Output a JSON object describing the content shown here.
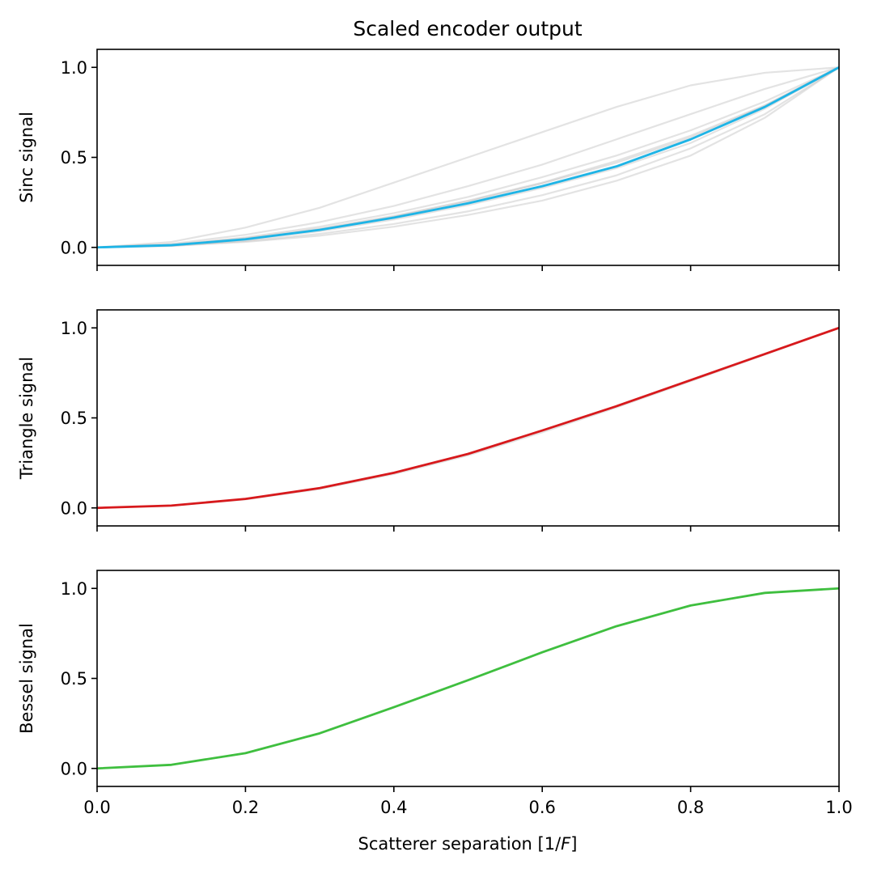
{
  "chart_data": {
    "type": "line",
    "title": "Scaled encoder output",
    "xlabel": "Scatterer separation [1/F]",
    "xlabel_parts": {
      "prefix": "Scatterer separation [1/",
      "italic": "F",
      "suffix": "]"
    },
    "xlim": [
      0.0,
      1.0
    ],
    "x_ticks": [
      0.0,
      0.2,
      0.4,
      0.6,
      0.8,
      1.0
    ],
    "x_tick_labels": [
      "0.0",
      "0.2",
      "0.4",
      "0.6",
      "0.8",
      "1.0"
    ],
    "sharex": true,
    "grid": false,
    "panels": [
      {
        "ylabel": "Sinc signal",
        "ylim": [
          -0.1,
          1.1
        ],
        "y_ticks": [
          0.0,
          0.5,
          1.0
        ],
        "y_tick_labels": [
          "0.0",
          "0.5",
          "1.0"
        ],
        "highlight": {
          "color": "#1eb4e6",
          "x": [
            0.0,
            0.1,
            0.2,
            0.3,
            0.4,
            0.5,
            0.6,
            0.7,
            0.8,
            0.9,
            1.0
          ],
          "y": [
            0.0,
            0.012,
            0.045,
            0.097,
            0.165,
            0.245,
            0.34,
            0.45,
            0.6,
            0.78,
            1.0
          ]
        },
        "background_color": "#999999",
        "background": [
          {
            "x": [
              0.0,
              0.1,
              0.2,
              0.3,
              0.4,
              0.5,
              0.6,
              0.7,
              0.8,
              0.9,
              1.0
            ],
            "y": [
              0.0,
              0.03,
              0.11,
              0.22,
              0.36,
              0.5,
              0.64,
              0.78,
              0.9,
              0.97,
              1.0
            ]
          },
          {
            "x": [
              0.0,
              0.1,
              0.2,
              0.3,
              0.4,
              0.5,
              0.6,
              0.7,
              0.8,
              0.9,
              1.0
            ],
            "y": [
              0.0,
              0.02,
              0.07,
              0.14,
              0.23,
              0.34,
              0.46,
              0.6,
              0.74,
              0.88,
              1.0
            ]
          },
          {
            "x": [
              0.0,
              0.1,
              0.2,
              0.3,
              0.4,
              0.5,
              0.6,
              0.7,
              0.8,
              0.9,
              1.0
            ],
            "y": [
              0.0,
              0.015,
              0.055,
              0.115,
              0.19,
              0.28,
              0.39,
              0.51,
              0.65,
              0.81,
              1.0
            ]
          },
          {
            "x": [
              0.0,
              0.1,
              0.2,
              0.3,
              0.4,
              0.5,
              0.6,
              0.7,
              0.8,
              0.9,
              1.0
            ],
            "y": [
              0.0,
              0.013,
              0.05,
              0.105,
              0.175,
              0.26,
              0.36,
              0.48,
              0.62,
              0.79,
              1.0
            ]
          },
          {
            "x": [
              0.0,
              0.1,
              0.2,
              0.3,
              0.4,
              0.5,
              0.6,
              0.7,
              0.8,
              0.9,
              1.0
            ],
            "y": [
              0.0,
              0.012,
              0.046,
              0.1,
              0.17,
              0.255,
              0.355,
              0.47,
              0.61,
              0.785,
              1.0
            ]
          },
          {
            "x": [
              0.0,
              0.1,
              0.2,
              0.3,
              0.4,
              0.5,
              0.6,
              0.7,
              0.8,
              0.9,
              1.0
            ],
            "y": [
              0.0,
              0.011,
              0.042,
              0.09,
              0.155,
              0.235,
              0.33,
              0.44,
              0.58,
              0.77,
              1.0
            ]
          },
          {
            "x": [
              0.0,
              0.1,
              0.2,
              0.3,
              0.4,
              0.5,
              0.6,
              0.7,
              0.8,
              0.9,
              1.0
            ],
            "y": [
              0.0,
              0.009,
              0.035,
              0.075,
              0.13,
              0.2,
              0.29,
              0.4,
              0.55,
              0.74,
              1.0
            ]
          },
          {
            "x": [
              0.0,
              0.1,
              0.2,
              0.3,
              0.4,
              0.5,
              0.6,
              0.7,
              0.8,
              0.9,
              1.0
            ],
            "y": [
              0.0,
              0.008,
              0.03,
              0.065,
              0.115,
              0.18,
              0.26,
              0.37,
              0.51,
              0.72,
              1.0
            ]
          }
        ]
      },
      {
        "ylabel": "Triangle signal",
        "ylim": [
          -0.1,
          1.1
        ],
        "y_ticks": [
          0.0,
          0.5,
          1.0
        ],
        "y_tick_labels": [
          "0.0",
          "0.5",
          "1.0"
        ],
        "highlight": {
          "color": "#d7191c",
          "x": [
            0.0,
            0.1,
            0.2,
            0.3,
            0.4,
            0.5,
            0.6,
            0.7,
            0.8,
            0.9,
            1.0
          ],
          "y": [
            0.0,
            0.013,
            0.05,
            0.11,
            0.195,
            0.3,
            0.43,
            0.565,
            0.71,
            0.855,
            1.0
          ]
        },
        "background_color": "#999999",
        "background": [
          {
            "x": [
              0.0,
              0.1,
              0.2,
              0.3,
              0.4,
              0.5,
              0.6,
              0.7,
              0.8,
              0.9,
              1.0
            ],
            "y": [
              0.0,
              0.012,
              0.047,
              0.105,
              0.188,
              0.292,
              0.42,
              0.558,
              0.704,
              0.852,
              1.0
            ]
          }
        ]
      },
      {
        "ylabel": "Bessel signal",
        "ylim": [
          -0.1,
          1.1
        ],
        "y_ticks": [
          0.0,
          0.5,
          1.0
        ],
        "y_tick_labels": [
          "0.0",
          "0.5",
          "1.0"
        ],
        "highlight": {
          "color": "#3fbf3f",
          "x": [
            0.0,
            0.1,
            0.2,
            0.3,
            0.4,
            0.5,
            0.6,
            0.7,
            0.8,
            0.9,
            1.0
          ],
          "y": [
            0.0,
            0.02,
            0.085,
            0.195,
            0.34,
            0.49,
            0.645,
            0.79,
            0.905,
            0.975,
            1.0
          ]
        },
        "background_color": "#999999",
        "background": [
          {
            "x": [
              0.0,
              0.1,
              0.2,
              0.3,
              0.4,
              0.5,
              0.6,
              0.7,
              0.8,
              0.9,
              1.0
            ],
            "y": [
              0.0,
              0.02,
              0.084,
              0.194,
              0.339,
              0.49,
              0.646,
              0.791,
              0.906,
              0.976,
              1.0
            ]
          }
        ]
      }
    ]
  }
}
